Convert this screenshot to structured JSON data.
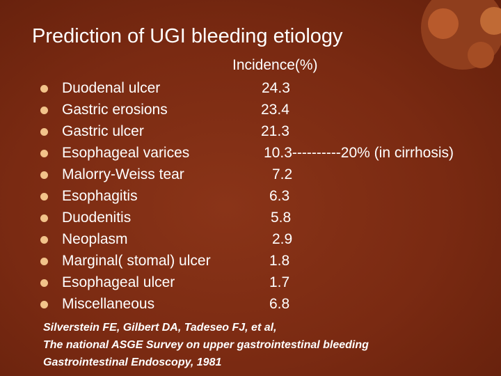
{
  "slide": {
    "title": "Prediction of UGI bleeding etiology",
    "column_header": "Incidence(%)",
    "rows": [
      {
        "label": "Duodenal ulcer",
        "value": "24.3"
      },
      {
        "label": "Gastric erosions",
        "value": "23.4"
      },
      {
        "label": "Gastric ulcer",
        "value": "21.3"
      },
      {
        "label": "Esophageal varices",
        "value": "10.3----------20% (in cirrhosis)"
      },
      {
        "label": "Malorry-Weiss tear",
        "value": "7.2"
      },
      {
        "label": "Esophagitis",
        "value": "6.3"
      },
      {
        "label": "Duodenitis",
        "value": "5.8"
      },
      {
        "label": "Neoplasm",
        "value": "2.9"
      },
      {
        "label": "Marginal( stomal) ulcer",
        "value": "1.8"
      },
      {
        "label": "Esophageal ulcer",
        "value": "1.7"
      },
      {
        "label": "Miscellaneous",
        "value": "6.8"
      }
    ],
    "citation": {
      "line1": "Silverstein FE, Gilbert DA, Tadeseo FJ, et al,",
      "line2": "The national ASGE Survey on upper gastrointestinal bleeding",
      "line3": "Gastrointestinal Endoscopy, 1981"
    }
  },
  "colors": {
    "background": "#7a2a12",
    "bullet": "#f2c38a",
    "text": "#ffffff"
  }
}
